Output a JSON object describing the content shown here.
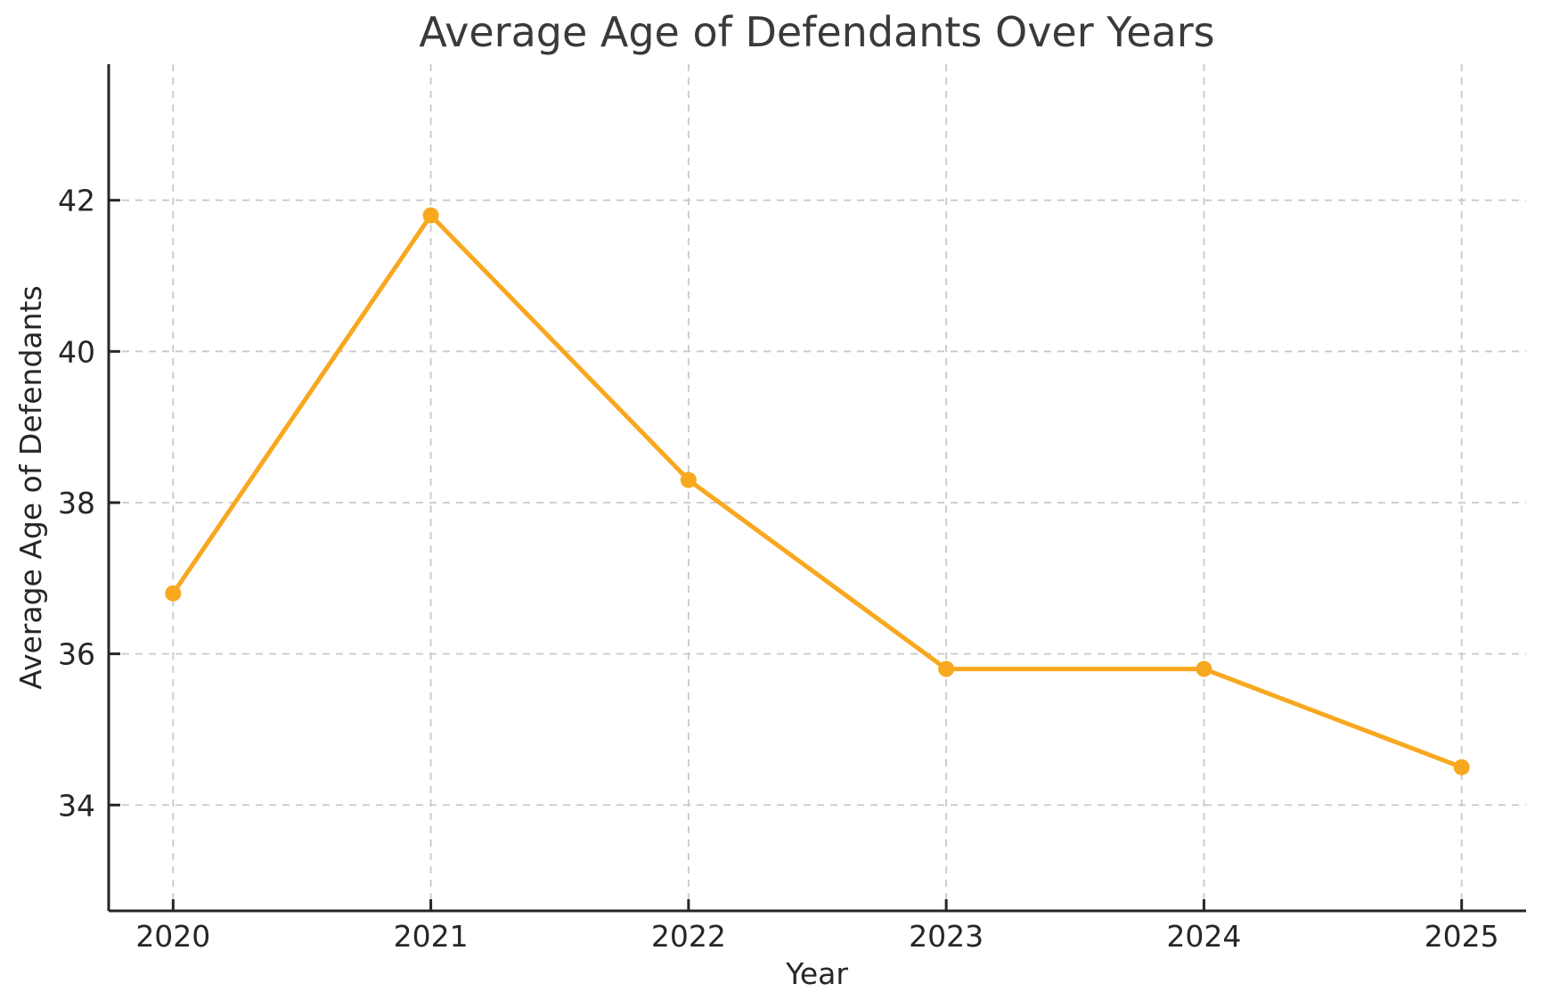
{
  "chart_data": {
    "type": "line",
    "title": "Average Age of Defendants Over Years",
    "xlabel": "Year",
    "ylabel": "Average Age of Defendants",
    "x": [
      2020,
      2021,
      2022,
      2023,
      2024,
      2025
    ],
    "series": [
      {
        "name": "Average Age of Defendants",
        "values": [
          36.8,
          41.8,
          38.3,
          35.8,
          35.8,
          34.5
        ]
      }
    ],
    "xticks": [
      2020,
      2021,
      2022,
      2023,
      2024,
      2025
    ],
    "yticks": [
      34,
      36,
      38,
      40,
      42
    ],
    "xlim": [
      2019.75,
      2025.25
    ],
    "ylim": [
      32.6,
      43.8
    ],
    "grid": true,
    "grid_style": "dashed",
    "legend": false,
    "marker": "circle",
    "colors": {
      "line": "#F8A81E",
      "marker": "#F8A81E",
      "grid": "#c9c9c9",
      "spine": "#262626",
      "tick_text": "#262626",
      "title_text": "#3a3a3a",
      "background": "#ffffff"
    }
  }
}
